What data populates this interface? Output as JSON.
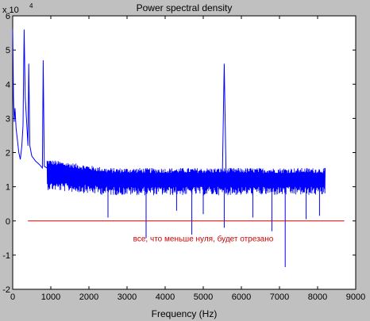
{
  "chart_data": {
    "type": "line",
    "title": "Power spectral density",
    "xlabel": "Frequency (Hz)",
    "ylabel": "",
    "exponent_label": "x 10",
    "exponent_value": "4",
    "xlim": [
      0,
      9000
    ],
    "ylim": [
      -20000,
      60000
    ],
    "x_ticks": [
      "0",
      "1000",
      "2000",
      "3000",
      "4000",
      "5000",
      "6000",
      "7000",
      "8000",
      "9000"
    ],
    "y_ticks": [
      "-2",
      "-1",
      "0",
      "1",
      "2",
      "3",
      "4",
      "5",
      "6"
    ],
    "grid": false,
    "series": [
      {
        "color": "#0000ff",
        "x": [
          0,
          20,
          40,
          60,
          90,
          120,
          160,
          200,
          240,
          270,
          300,
          330,
          360,
          400,
          420,
          450,
          500,
          600,
          700,
          780,
          800,
          830,
          900,
          1000,
          1200,
          1500,
          2000,
          2500,
          3000,
          3500,
          4000,
          4500,
          5000,
          5500,
          5550,
          5600,
          6000,
          6500,
          7000,
          7500,
          8000,
          8200
        ],
        "y": [
          56000,
          36000,
          29000,
          33000,
          27000,
          24000,
          20000,
          18000,
          22000,
          28000,
          56000,
          36000,
          30000,
          22000,
          46000,
          22000,
          19000,
          17500,
          16500,
          15500,
          47000,
          16000,
          15500,
          15000,
          14500,
          14000,
          13500,
          13200,
          13000,
          12800,
          12600,
          12500,
          12400,
          12300,
          46000,
          12300,
          12200,
          12100,
          12000,
          12000,
          12000,
          12000
        ]
      }
    ],
    "noise_band": {
      "start_x": 900,
      "end_x": 8200,
      "typical_low": 10000,
      "typical_high": 14000,
      "dips": [
        {
          "x": 2500,
          "y": 1000
        },
        {
          "x": 3500,
          "y": -5000
        },
        {
          "x": 4300,
          "y": 3000
        },
        {
          "x": 4700,
          "y": -4000
        },
        {
          "x": 5000,
          "y": 2000
        },
        {
          "x": 5550,
          "y": -2000
        },
        {
          "x": 6300,
          "y": 1000
        },
        {
          "x": 6800,
          "y": -3000
        },
        {
          "x": 7150,
          "y": -13500
        },
        {
          "x": 7700,
          "y": 500
        },
        {
          "x": 8050,
          "y": 1500
        }
      ]
    },
    "reference_line": {
      "y": 0,
      "x_start": 400,
      "x_end": 8700,
      "color": "#cc0000"
    },
    "annotation": {
      "text": "все, что меньше нуля, будет отрезано",
      "x": 5000,
      "y": -6000,
      "color": "#cc0000"
    }
  }
}
